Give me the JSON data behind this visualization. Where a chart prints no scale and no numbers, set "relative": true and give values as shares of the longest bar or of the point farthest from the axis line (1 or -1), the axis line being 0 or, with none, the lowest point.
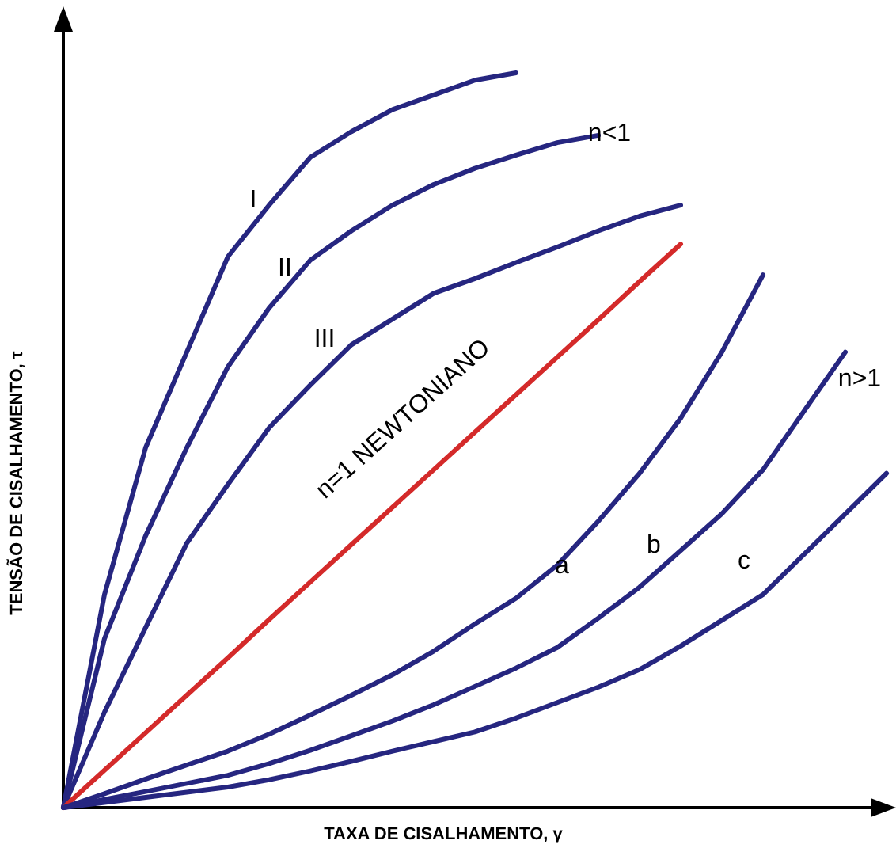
{
  "chart_data": {
    "type": "line",
    "relative": true,
    "xlabel": "TAXA DE CISALHAMENTO, γ",
    "ylabel": "TENSÃO DE CISALHAMENTO, τ",
    "marker": "none",
    "line_style": "solid",
    "categories": [
      null,
      null,
      null,
      null,
      null,
      null,
      null,
      null,
      null,
      null,
      null,
      null,
      null,
      null,
      null,
      null,
      null,
      null,
      null,
      null,
      null
    ],
    "series": [
      {
        "color": "#262680",
        "values": [
          0,
          0.29,
          0.49,
          0.62,
          0.75,
          0.82,
          0.885,
          0.92,
          0.95,
          0.97,
          0.99,
          1.0,
          null,
          null,
          null,
          null,
          null,
          null,
          null,
          null,
          null
        ]
      },
      {
        "color": "#262680",
        "values": [
          0,
          0.23,
          0.37,
          0.49,
          0.6,
          0.68,
          0.745,
          0.785,
          0.82,
          0.848,
          0.87,
          0.888,
          0.905,
          0.915,
          null,
          null,
          null,
          null,
          null,
          null,
          null
        ]
      },
      {
        "color": "#262680",
        "values": [
          0,
          0.13,
          0.245,
          0.36,
          0.44,
          0.517,
          0.575,
          0.63,
          0.665,
          0.7,
          0.72,
          0.742,
          0.763,
          0.785,
          0.805,
          0.82,
          null,
          null,
          null,
          null,
          null
        ]
      },
      {
        "color": "#d42a2a",
        "values": [
          0,
          0.051,
          0.102,
          0.153,
          0.204,
          0.256,
          0.307,
          0.358,
          0.409,
          0.46,
          0.511,
          0.562,
          0.613,
          0.664,
          0.716,
          0.767,
          null,
          null,
          null,
          null,
          null
        ]
      },
      {
        "color": "#262680",
        "values": [
          0,
          0.019,
          0.039,
          0.058,
          0.077,
          0.1,
          0.126,
          0.153,
          0.181,
          0.213,
          0.25,
          0.285,
          0.33,
          0.39,
          0.455,
          0.53,
          0.62,
          0.725,
          null,
          null,
          null
        ]
      },
      {
        "color": "#262680",
        "values": [
          0,
          0.011,
          0.022,
          0.033,
          0.044,
          0.06,
          0.078,
          0.098,
          0.118,
          0.14,
          0.165,
          0.19,
          0.218,
          0.258,
          0.3,
          0.35,
          0.4,
          0.46,
          0.54,
          0.62,
          null
        ]
      },
      {
        "color": "#262680",
        "values": [
          0,
          0.007,
          0.014,
          0.021,
          0.028,
          0.038,
          0.05,
          0.063,
          0.077,
          0.09,
          0.103,
          0.122,
          0.143,
          0.164,
          0.188,
          0.22,
          0.255,
          0.29,
          0.345,
          0.4,
          0.455
        ]
      }
    ],
    "annotations": [
      "I",
      "II",
      "III",
      "n<1",
      "n=1  NEWTONIANO",
      "a",
      "b",
      "c",
      "n>1"
    ]
  }
}
